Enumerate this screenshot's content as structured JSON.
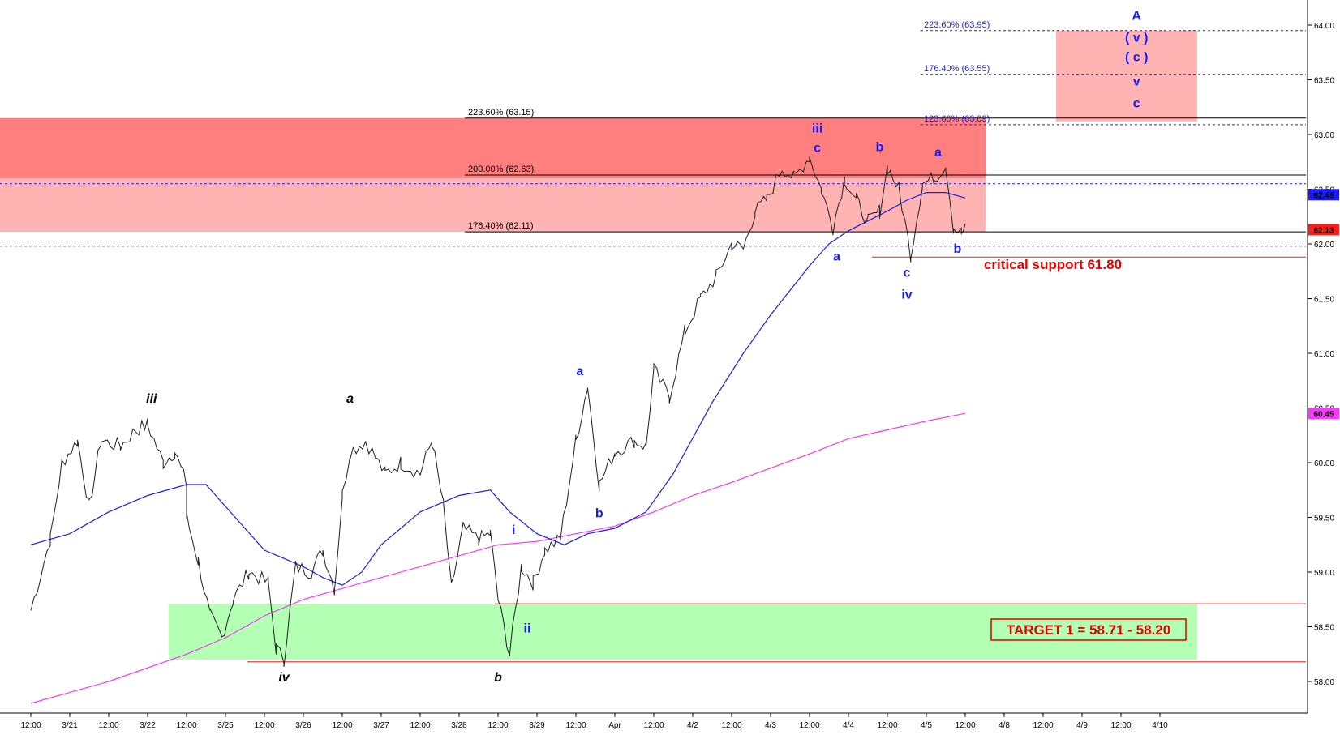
{
  "chart_data": {
    "type": "line",
    "title": "",
    "xlabel": "",
    "ylabel": "",
    "ylim": [
      57.75,
      64.2
    ],
    "grid": false,
    "y_ticks": [
      "58.00",
      "58.50",
      "59.00",
      "59.50",
      "60.00",
      "60.50",
      "61.00",
      "61.50",
      "62.00",
      "62.50",
      "63.00",
      "63.50",
      "64.00"
    ],
    "x_ticks": [
      "12:00",
      "3/21",
      "12:00",
      "3/22",
      "12:00",
      "3/25",
      "12:00",
      "3/26",
      "12:00",
      "3/27",
      "12:00",
      "3/28",
      "12:00",
      "3/29",
      "12:00",
      "Apr",
      "12:00",
      "4/2",
      "12:00",
      "4/3",
      "12:00",
      "4/4",
      "12:00",
      "4/5",
      "12:00",
      "4/8",
      "12:00",
      "4/9",
      "12:00",
      "4/10"
    ],
    "price_path": [
      [
        0,
        58.65
      ],
      [
        0.5,
        59.3
      ],
      [
        0.8,
        60.0
      ],
      [
        1.2,
        60.2
      ],
      [
        1.5,
        59.6
      ],
      [
        1.8,
        60.2
      ],
      [
        2.3,
        60.15
      ],
      [
        2.7,
        60.3
      ],
      [
        3.0,
        60.35
      ],
      [
        3.4,
        60.0
      ],
      [
        3.7,
        60.1
      ],
      [
        4.0,
        59.8
      ],
      [
        4.0,
        59.5
      ],
      [
        4.3,
        59.1
      ],
      [
        4.6,
        58.6
      ],
      [
        4.9,
        58.4
      ],
      [
        5.2,
        58.75
      ],
      [
        5.6,
        59.0
      ],
      [
        6.1,
        58.9
      ],
      [
        6.3,
        58.3
      ],
      [
        6.5,
        58.2
      ],
      [
        6.8,
        59.05
      ],
      [
        7.2,
        59.0
      ],
      [
        7.5,
        59.2
      ],
      [
        7.8,
        58.85
      ],
      [
        8.0,
        59.7
      ],
      [
        8.2,
        60.1
      ],
      [
        8.6,
        60.2
      ],
      [
        9.1,
        59.9
      ],
      [
        9.5,
        60.0
      ],
      [
        10.0,
        59.9
      ],
      [
        10.3,
        60.2
      ],
      [
        10.6,
        59.6
      ],
      [
        10.8,
        58.85
      ],
      [
        11.1,
        59.4
      ],
      [
        11.5,
        59.3
      ],
      [
        11.8,
        59.35
      ],
      [
        12.0,
        58.75
      ],
      [
        12.3,
        58.25
      ],
      [
        12.6,
        59.05
      ],
      [
        12.9,
        58.9
      ],
      [
        13.2,
        59.2
      ],
      [
        13.6,
        59.3
      ],
      [
        14.0,
        60.2
      ],
      [
        14.3,
        60.7
      ],
      [
        14.6,
        59.8
      ],
      [
        15.0,
        60.1
      ],
      [
        15.5,
        60.2
      ],
      [
        15.8,
        60.15
      ],
      [
        16.0,
        60.85
      ],
      [
        16.4,
        60.6
      ],
      [
        16.8,
        61.2
      ],
      [
        17.2,
        61.5
      ],
      [
        17.6,
        61.7
      ],
      [
        18.0,
        62.0
      ],
      [
        18.3,
        61.95
      ],
      [
        18.6,
        62.3
      ],
      [
        18.9,
        62.4
      ],
      [
        19.3,
        62.7
      ],
      [
        19.6,
        62.6
      ],
      [
        20.0,
        62.8
      ],
      [
        20.3,
        62.5
      ],
      [
        20.6,
        62.15
      ],
      [
        20.9,
        62.6
      ],
      [
        21.2,
        62.4
      ],
      [
        21.5,
        62.2
      ],
      [
        21.8,
        62.3
      ],
      [
        22.0,
        62.7
      ],
      [
        22.3,
        62.5
      ],
      [
        22.6,
        61.9
      ],
      [
        22.9,
        62.55
      ],
      [
        23.2,
        62.6
      ],
      [
        23.5,
        62.72
      ],
      [
        23.7,
        62.15
      ],
      [
        23.9,
        62.1
      ],
      [
        24.0,
        62.13
      ]
    ],
    "ma_blue": [
      [
        0,
        59.25
      ],
      [
        1,
        59.35
      ],
      [
        2,
        59.55
      ],
      [
        3,
        59.7
      ],
      [
        4,
        59.8
      ],
      [
        4.5,
        59.8
      ],
      [
        5,
        59.6
      ],
      [
        6,
        59.2
      ],
      [
        7,
        59.05
      ],
      [
        7.5,
        58.95
      ],
      [
        8,
        58.88
      ],
      [
        8.5,
        59.0
      ],
      [
        9,
        59.25
      ],
      [
        10,
        59.55
      ],
      [
        11,
        59.7
      ],
      [
        11.8,
        59.75
      ],
      [
        12.3,
        59.55
      ],
      [
        13,
        59.35
      ],
      [
        13.7,
        59.25
      ],
      [
        14.3,
        59.35
      ],
      [
        15,
        59.4
      ],
      [
        15.8,
        59.55
      ],
      [
        16.5,
        59.9
      ],
      [
        17.5,
        60.55
      ],
      [
        18.3,
        61.0
      ],
      [
        19,
        61.35
      ],
      [
        20,
        61.8
      ],
      [
        20.5,
        62.0
      ],
      [
        21,
        62.12
      ],
      [
        22,
        62.3
      ],
      [
        22.5,
        62.4
      ],
      [
        23,
        62.47
      ],
      [
        23.5,
        62.47
      ],
      [
        24,
        62.42
      ]
    ],
    "ma_magenta": [
      [
        0,
        57.8
      ],
      [
        2,
        58.0
      ],
      [
        4,
        58.25
      ],
      [
        5,
        58.4
      ],
      [
        6,
        58.6
      ],
      [
        7,
        58.75
      ],
      [
        8,
        58.85
      ],
      [
        9,
        58.95
      ],
      [
        10,
        59.05
      ],
      [
        11,
        59.15
      ],
      [
        12,
        59.25
      ],
      [
        13,
        59.28
      ],
      [
        14,
        59.35
      ],
      [
        15,
        59.42
      ],
      [
        16,
        59.55
      ],
      [
        17,
        59.7
      ],
      [
        18,
        59.82
      ],
      [
        19,
        59.95
      ],
      [
        20,
        60.08
      ],
      [
        21,
        60.22
      ],
      [
        22,
        60.3
      ],
      [
        23,
        60.38
      ],
      [
        24,
        60.45
      ]
    ],
    "price_badges": [
      {
        "value": 62.45,
        "label": "62.45",
        "color": "#1a1aff"
      },
      {
        "value": 62.13,
        "label": "62.13",
        "color": "#ff1a1a"
      },
      {
        "value": 60.45,
        "label": "60.45",
        "color": "#ff33ff"
      }
    ],
    "fib_levels": [
      {
        "label": "223.60% (63.15)",
        "value": 63.15,
        "style": "solid",
        "color": "#000000"
      },
      {
        "label": "200.00% (62.63)",
        "value": 62.63,
        "style": "solid",
        "color": "#000000"
      },
      {
        "label": "176.40% (62.11)",
        "value": 62.11,
        "style": "solid",
        "color": "#000000"
      },
      {
        "label": "223.60% (63.95)",
        "value": 63.95,
        "style": "dashed",
        "color": "#1a1aff"
      },
      {
        "label": "176.40% (63.55)",
        "value": 63.55,
        "style": "dashed",
        "color": "#1a1aff"
      },
      {
        "label": "123.60% (63.09)",
        "value": 63.09,
        "style": "dashed",
        "color": "#1a1aff"
      }
    ],
    "extra_levels": [
      {
        "value": 62.55,
        "style": "dashed",
        "color": "#1a1aff"
      },
      {
        "value": 61.98,
        "style": "dashed",
        "color": "#1a1aff"
      },
      {
        "value": 61.88,
        "style": "solid",
        "color": "#ff1a1a"
      },
      {
        "value": 58.71,
        "style": "solid",
        "color": "#ff1a1a"
      },
      {
        "value": 58.18,
        "style": "solid",
        "color": "#ff1a1a"
      }
    ],
    "zones": [
      {
        "name": "resistance-zone-dark",
        "y": [
          62.6,
          63.15
        ],
        "color": "#ff7f7f"
      },
      {
        "name": "resistance-zone-light",
        "y": [
          62.11,
          62.6
        ],
        "color": "#ffb3b3"
      },
      {
        "name": "target-a-zone",
        "y": [
          63.12,
          63.95
        ],
        "color": "#ffb3b3"
      },
      {
        "name": "target-1-zone",
        "y": [
          58.2,
          58.71
        ],
        "color": "#b3ffb3"
      }
    ],
    "wave_labels": [
      {
        "text": "iii",
        "x": 3.1,
        "y": 60.55,
        "color": "#000000",
        "italic": true
      },
      {
        "text": "iv",
        "x": 6.5,
        "y": 58.0,
        "color": "#000000",
        "italic": true
      },
      {
        "text": "a",
        "x": 8.2,
        "y": 60.55,
        "color": "#000000",
        "italic": true
      },
      {
        "text": "b",
        "x": 12.0,
        "y": 58.0,
        "color": "#000000",
        "italic": true
      },
      {
        "text": "i",
        "x": 12.4,
        "y": 59.35,
        "color": "#1a1aff",
        "italic": false
      },
      {
        "text": "ii",
        "x": 12.75,
        "y": 58.45,
        "color": "#1a1aff",
        "italic": false
      },
      {
        "text": "a",
        "x": 14.1,
        "y": 60.8,
        "color": "#1a1aff",
        "italic": false
      },
      {
        "text": "b",
        "x": 14.6,
        "y": 59.5,
        "color": "#1a1aff",
        "italic": false
      },
      {
        "text": "iii",
        "x": 20.2,
        "y": 63.02,
        "color": "#1a1aff",
        "italic": false
      },
      {
        "text": "c",
        "x": 20.2,
        "y": 62.84,
        "color": "#1a1aff",
        "italic": false
      },
      {
        "text": "a",
        "x": 20.7,
        "y": 61.85,
        "color": "#1a1aff",
        "italic": false
      },
      {
        "text": "b",
        "x": 21.8,
        "y": 62.85,
        "color": "#1a1aff",
        "italic": false
      },
      {
        "text": "c",
        "x": 22.5,
        "y": 61.7,
        "color": "#1a1aff",
        "italic": false
      },
      {
        "text": "iv",
        "x": 22.5,
        "y": 61.5,
        "color": "#1a1aff",
        "italic": false
      },
      {
        "text": "a",
        "x": 23.3,
        "y": 62.8,
        "color": "#1a1aff",
        "italic": false
      },
      {
        "text": "b",
        "x": 23.8,
        "y": 61.92,
        "color": "#1a1aff",
        "italic": false
      },
      {
        "text": "A",
        "x": 28.4,
        "y": 64.05,
        "color": "#1a1aff",
        "italic": false
      },
      {
        "text": "( v )",
        "x": 28.4,
        "y": 63.85,
        "color": "#1a1aff",
        "italic": false
      },
      {
        "text": "( c )",
        "x": 28.4,
        "y": 63.67,
        "color": "#1a1aff",
        "italic": false
      },
      {
        "text": "v",
        "x": 28.4,
        "y": 63.45,
        "color": "#1a1aff",
        "italic": false
      },
      {
        "text": "c",
        "x": 28.4,
        "y": 63.25,
        "color": "#1a1aff",
        "italic": false
      }
    ],
    "annotations": {
      "critical_support": "critical support 61.80",
      "target_1": "TARGET 1 = 58.71 - 58.20"
    }
  }
}
